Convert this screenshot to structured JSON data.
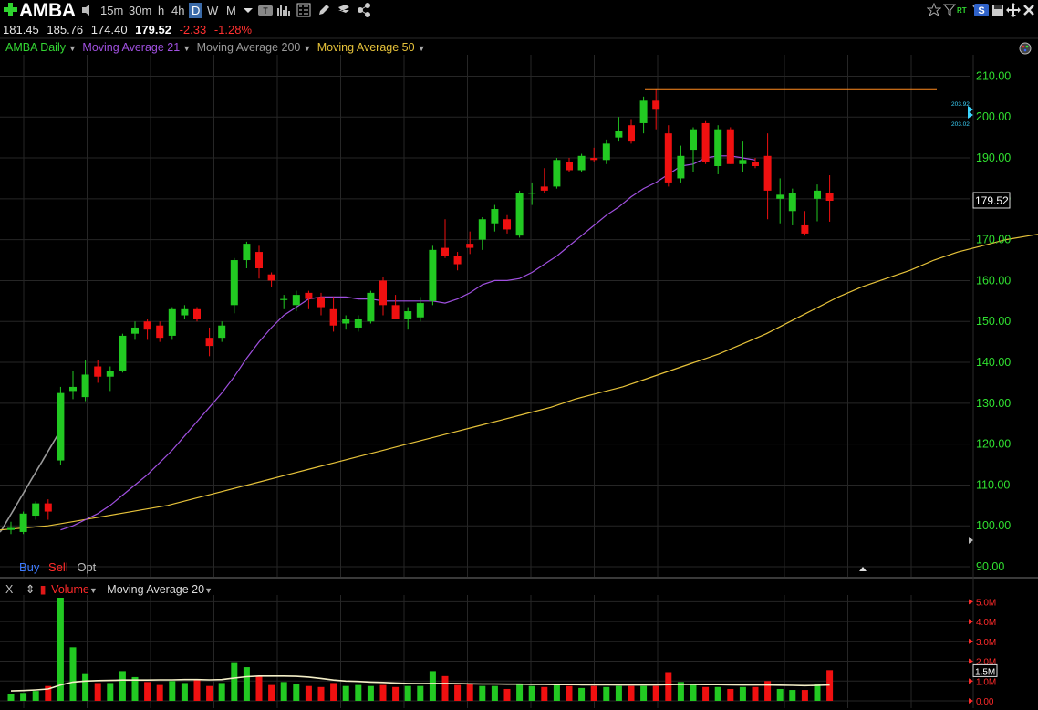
{
  "toolbar": {
    "symbol": "AMBA",
    "timeframes": [
      "15m",
      "30m",
      "h",
      "4h",
      "D",
      "W",
      "M"
    ],
    "selected_timeframe": "D",
    "tab_badge_text": "RT",
    "share_badge": "S"
  },
  "quote": {
    "open": "181.45",
    "high": "185.76",
    "low": "174.40",
    "last": "179.52",
    "change": "-2.33",
    "change_pct": "-1.28%"
  },
  "legend": {
    "main": {
      "label": "AMBA Daily",
      "color": "#33d633"
    },
    "ma21": {
      "label": "Moving Average 21",
      "color": "#a050e0"
    },
    "ma200": {
      "label": "Moving Average 200",
      "color": "#9a9a9a"
    },
    "ma50": {
      "label": "Moving Average 50",
      "color": "#e6c23a"
    }
  },
  "trade": {
    "buy": "Buy",
    "sell": "Sell",
    "opt": "Opt"
  },
  "volume_legend": {
    "close": "X",
    "volume": "Volume",
    "ma": "Moving Average 20"
  },
  "price_axis": {
    "ticks": [
      "210.00",
      "200.00",
      "190.00",
      "180.00",
      "170.00",
      "160.00",
      "150.00",
      "140.00",
      "130.00",
      "120.00",
      "110.00",
      "100.00",
      "90.00"
    ],
    "last_label": "179.52",
    "small_labels": [
      "203.92",
      "203.02"
    ]
  },
  "volume_axis": {
    "ticks": [
      "5.0M",
      "4.0M",
      "3.0M",
      "2.0M",
      "1.0M",
      "0.00"
    ],
    "last_label": "1.5M"
  },
  "colors": {
    "up": "#22c922",
    "down": "#f01010",
    "horizontal_line": "#ff8a1e",
    "axis_green": "#30e030",
    "axis_red": "#ff2a2a"
  },
  "chart_data": {
    "type": "candlestick",
    "price_range": [
      88,
      213
    ],
    "volume_range": [
      0,
      5.2
    ],
    "horizontal_line_level": 206.8,
    "candles": [
      {
        "o": 99,
        "h": 101,
        "l": 98,
        "c": 99.5
      },
      {
        "o": 98.5,
        "h": 103.5,
        "l": 98,
        "c": 103
      },
      {
        "o": 102.5,
        "h": 106,
        "l": 101.5,
        "c": 105.5
      },
      {
        "o": 105.5,
        "h": 106.5,
        "l": 101.5,
        "c": 103.5
      },
      {
        "o": 116,
        "h": 134,
        "l": 115,
        "c": 132.5
      },
      {
        "o": 133,
        "h": 138,
        "l": 131,
        "c": 134
      },
      {
        "o": 131.5,
        "h": 140.5,
        "l": 130.5,
        "c": 137
      },
      {
        "o": 139,
        "h": 140.5,
        "l": 135,
        "c": 136.5
      },
      {
        "o": 136.5,
        "h": 139,
        "l": 133,
        "c": 138
      },
      {
        "o": 138,
        "h": 147,
        "l": 137.5,
        "c": 146.5
      },
      {
        "o": 147,
        "h": 150,
        "l": 145.5,
        "c": 148.5
      },
      {
        "o": 150,
        "h": 150.5,
        "l": 145.5,
        "c": 148
      },
      {
        "o": 149,
        "h": 150,
        "l": 145,
        "c": 146
      },
      {
        "o": 146.5,
        "h": 153.5,
        "l": 145.5,
        "c": 153
      },
      {
        "o": 151.5,
        "h": 154,
        "l": 150.5,
        "c": 153
      },
      {
        "o": 153,
        "h": 153.5,
        "l": 150,
        "c": 150.5
      },
      {
        "o": 146,
        "h": 148.5,
        "l": 141.5,
        "c": 144
      },
      {
        "o": 146,
        "h": 150,
        "l": 145,
        "c": 149
      },
      {
        "o": 154,
        "h": 165.5,
        "l": 152,
        "c": 165
      },
      {
        "o": 165,
        "h": 169.5,
        "l": 163,
        "c": 169
      },
      {
        "o": 167,
        "h": 168.5,
        "l": 160.5,
        "c": 163
      },
      {
        "o": 161.5,
        "h": 162,
        "l": 158.5,
        "c": 160
      },
      {
        "o": 155.5,
        "h": 156.5,
        "l": 153,
        "c": 155.5
      },
      {
        "o": 154,
        "h": 157.5,
        "l": 152.5,
        "c": 156.5
      },
      {
        "o": 157,
        "h": 157.5,
        "l": 153,
        "c": 155.5
      },
      {
        "o": 156,
        "h": 157,
        "l": 151.5,
        "c": 153.5
      },
      {
        "o": 153,
        "h": 156,
        "l": 147.5,
        "c": 149
      },
      {
        "o": 149.5,
        "h": 151.5,
        "l": 148,
        "c": 150.5
      },
      {
        "o": 148.5,
        "h": 151.5,
        "l": 147.5,
        "c": 150.5
      },
      {
        "o": 150,
        "h": 157.5,
        "l": 149.5,
        "c": 157
      },
      {
        "o": 160,
        "h": 161,
        "l": 151.5,
        "c": 154
      },
      {
        "o": 154,
        "h": 156.5,
        "l": 150.5,
        "c": 150.5
      },
      {
        "o": 150.5,
        "h": 153.5,
        "l": 148,
        "c": 152.5
      },
      {
        "o": 151,
        "h": 156,
        "l": 150,
        "c": 154.5
      },
      {
        "o": 155,
        "h": 168.5,
        "l": 154,
        "c": 167.5
      },
      {
        "o": 168,
        "h": 175,
        "l": 165.5,
        "c": 166
      },
      {
        "o": 166,
        "h": 167,
        "l": 162.5,
        "c": 164
      },
      {
        "o": 169,
        "h": 172,
        "l": 166.5,
        "c": 168
      },
      {
        "o": 170,
        "h": 175.5,
        "l": 167.5,
        "c": 175
      },
      {
        "o": 174,
        "h": 178.5,
        "l": 172,
        "c": 177.5
      },
      {
        "o": 175,
        "h": 176,
        "l": 171.5,
        "c": 172.5
      },
      {
        "o": 171,
        "h": 182,
        "l": 170.5,
        "c": 181.5
      },
      {
        "o": 181.5,
        "h": 184,
        "l": 178.5,
        "c": 181.5
      },
      {
        "o": 183,
        "h": 187.5,
        "l": 181.5,
        "c": 182
      },
      {
        "o": 183,
        "h": 190,
        "l": 182.5,
        "c": 189.5
      },
      {
        "o": 189,
        "h": 190,
        "l": 186.5,
        "c": 187
      },
      {
        "o": 187,
        "h": 191,
        "l": 186.5,
        "c": 190.5
      },
      {
        "o": 190,
        "h": 192.5,
        "l": 189,
        "c": 189.5
      },
      {
        "o": 189.5,
        "h": 194.5,
        "l": 188.5,
        "c": 193.5
      },
      {
        "o": 195,
        "h": 200,
        "l": 194,
        "c": 196.5
      },
      {
        "o": 198,
        "h": 199.5,
        "l": 193.5,
        "c": 194
      },
      {
        "o": 198.5,
        "h": 205,
        "l": 196,
        "c": 204
      },
      {
        "o": 204,
        "h": 207,
        "l": 197,
        "c": 202
      },
      {
        "o": 196,
        "h": 198,
        "l": 183,
        "c": 184
      },
      {
        "o": 185,
        "h": 193,
        "l": 184,
        "c": 190.5
      },
      {
        "o": 192,
        "h": 197.5,
        "l": 186.5,
        "c": 197
      },
      {
        "o": 198.5,
        "h": 199,
        "l": 188.5,
        "c": 189
      },
      {
        "o": 188,
        "h": 198,
        "l": 186,
        "c": 197
      },
      {
        "o": 197,
        "h": 197.5,
        "l": 188.5,
        "c": 188.5
      },
      {
        "o": 188.5,
        "h": 194,
        "l": 186.5,
        "c": 189.5
      },
      {
        "o": 189,
        "h": 190,
        "l": 187.5,
        "c": 188
      },
      {
        "o": 190.5,
        "h": 196,
        "l": 175,
        "c": 182
      },
      {
        "o": 180,
        "h": 185,
        "l": 174,
        "c": 181
      },
      {
        "o": 177,
        "h": 182.5,
        "l": 173.5,
        "c": 181.5
      },
      {
        "o": 173.5,
        "h": 177,
        "l": 171,
        "c": 171.5
      },
      {
        "o": 180,
        "h": 183.5,
        "l": 174.5,
        "c": 182
      },
      {
        "o": 181.5,
        "h": 185.76,
        "l": 174.4,
        "c": 179.52
      }
    ],
    "volumes": [
      0.35,
      0.4,
      0.5,
      0.75,
      5.2,
      2.7,
      1.35,
      0.9,
      0.9,
      1.5,
      1.2,
      0.95,
      0.8,
      1.0,
      0.9,
      1.1,
      0.75,
      0.9,
      1.95,
      1.7,
      1.25,
      0.8,
      0.95,
      0.85,
      0.75,
      0.7,
      0.9,
      0.75,
      0.8,
      0.75,
      0.8,
      0.7,
      0.75,
      0.75,
      1.5,
      1.25,
      0.8,
      0.85,
      0.75,
      0.75,
      0.6,
      0.85,
      0.75,
      0.7,
      0.85,
      0.75,
      0.65,
      0.75,
      0.7,
      0.75,
      0.75,
      0.75,
      0.75,
      1.45,
      0.95,
      0.85,
      0.7,
      0.7,
      0.6,
      0.7,
      0.7,
      1.0,
      0.6,
      0.55,
      0.55,
      0.85,
      1.55
    ],
    "vol_ma20": [
      0.5,
      0.52,
      0.55,
      0.6,
      0.8,
      0.95,
      1.0,
      1.02,
      1.03,
      1.05,
      1.05,
      1.05,
      1.06,
      1.06,
      1.07,
      1.07,
      1.06,
      1.07,
      1.15,
      1.22,
      1.25,
      1.25,
      1.25,
      1.24,
      1.2,
      1.13,
      1.05,
      1.0,
      0.98,
      0.95,
      0.93,
      0.9,
      0.88,
      0.87,
      0.88,
      0.88,
      0.87,
      0.86,
      0.85,
      0.85,
      0.84,
      0.84,
      0.83,
      0.83,
      0.82,
      0.82,
      0.81,
      0.81,
      0.81,
      0.8,
      0.8,
      0.8,
      0.8,
      0.82,
      0.83,
      0.83,
      0.82,
      0.82,
      0.81,
      0.8,
      0.8,
      0.8,
      0.79,
      0.78,
      0.77,
      0.78,
      0.8
    ],
    "ma21": [
      99,
      100,
      101.5,
      103,
      105,
      107.5,
      110,
      112.5,
      115.5,
      118.5,
      122,
      125.5,
      129,
      132.5,
      136.5,
      141,
      145,
      148.5,
      151.5,
      153.5,
      155.5,
      156,
      156,
      156,
      155.5,
      155.5,
      155,
      155,
      155,
      155,
      155,
      154.5,
      155.5,
      157,
      159,
      160,
      160,
      160.5,
      162,
      164,
      166,
      168.5,
      171,
      173.5,
      176,
      178,
      180.5,
      182.5,
      184,
      186,
      188,
      188.5,
      190,
      190.5,
      190.5,
      190,
      189.5
    ],
    "ma21_start_index": 4,
    "ma50": [
      99,
      99.5,
      100,
      101,
      102,
      103,
      104,
      105,
      106.5,
      108,
      109.5,
      111,
      112.5,
      114,
      115.5,
      117,
      118.5,
      120,
      121.5,
      123,
      124.5,
      126,
      127.5,
      129,
      131,
      132.5,
      134,
      136,
      138,
      140,
      142,
      144.5,
      147,
      150,
      153,
      156,
      158.5,
      160.5,
      162.5,
      165,
      167,
      168.5,
      170,
      171,
      172,
      173,
      174,
      175
    ],
    "ma50_step": 1.35,
    "ma200": [
      98.5,
      99,
      99.7,
      100.4,
      101.1,
      101.8,
      102.5,
      103.2,
      103.9,
      104.6,
      105.3,
      106,
      106.7,
      107.4,
      108.1,
      108.8,
      109.5,
      110.2,
      110.9,
      111.6,
      112.3,
      113,
      113.7,
      114.4,
      115.1,
      115.8,
      116.5,
      117.2,
      117.9,
      118.6,
      119.3,
      120,
      120.7,
      121.4,
      122.1,
      122.5
    ],
    "ma200_step": 1.85
  }
}
